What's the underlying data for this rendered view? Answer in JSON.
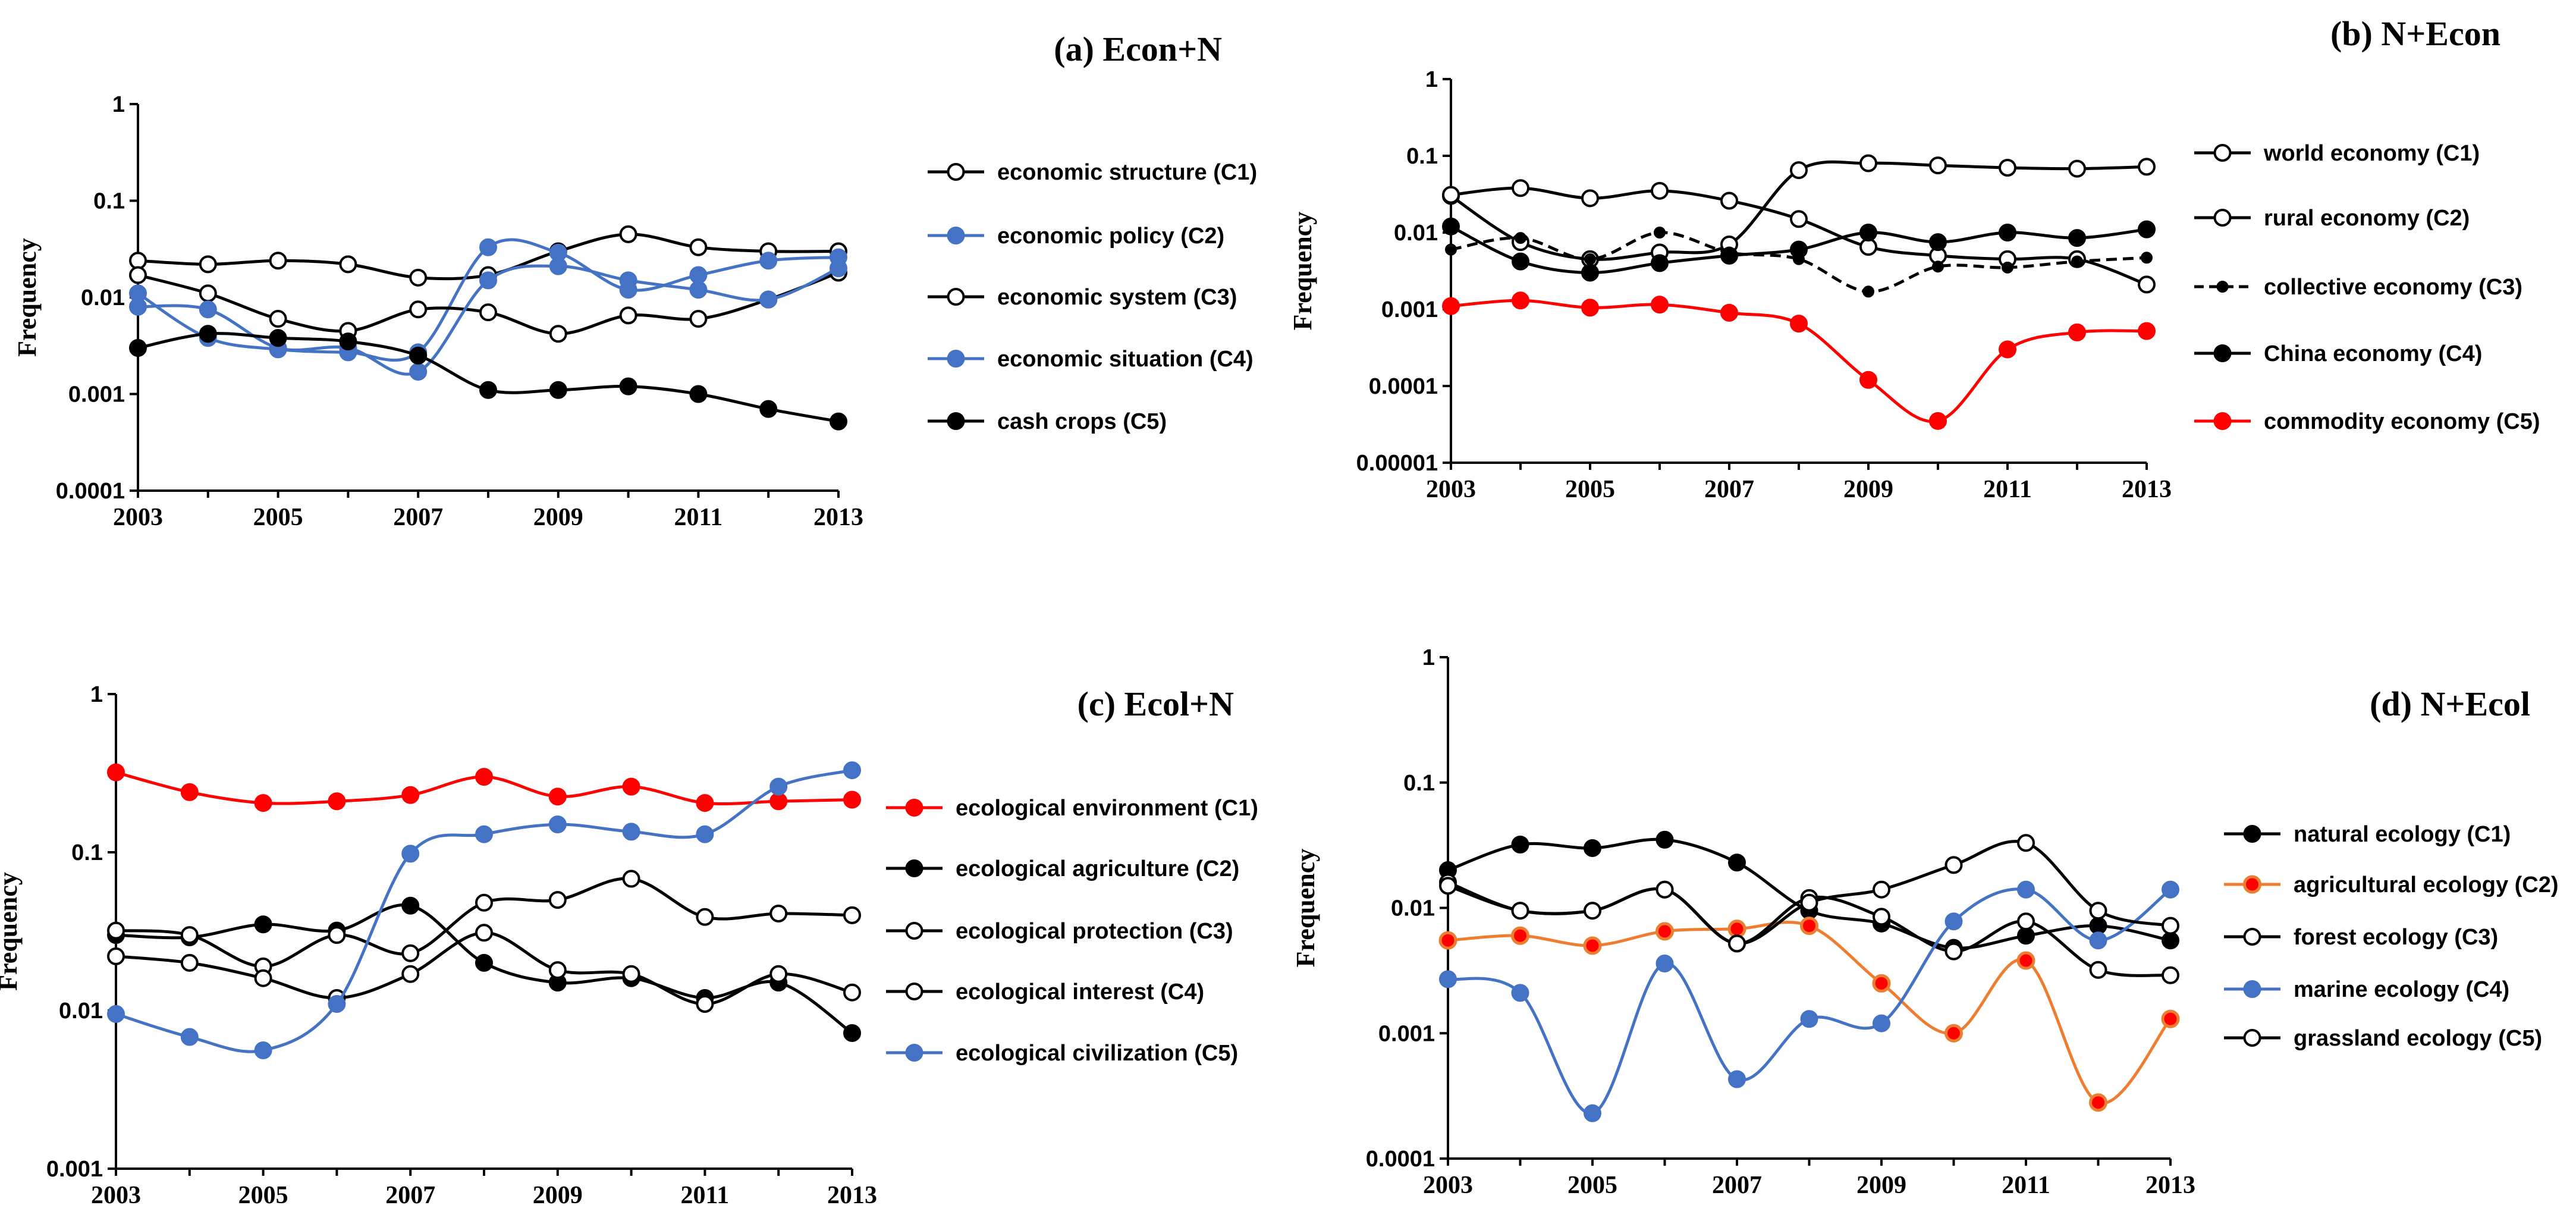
{
  "chart_data": [
    {
      "id": "a",
      "type": "line",
      "title": "(a) Econ+N",
      "xlabel": "",
      "ylabel": "Frequency",
      "yscale": "log",
      "ylim": [
        0.0001,
        1
      ],
      "yticks": [
        "1",
        "0.1",
        "0.01",
        "0.001",
        "0.0001"
      ],
      "xlim": [
        2003,
        2013
      ],
      "xticks": [
        "2003",
        "2005",
        "2007",
        "2009",
        "2011",
        "2013"
      ],
      "x": [
        2003,
        2004,
        2005,
        2006,
        2007,
        2008,
        2009,
        2010,
        2011,
        2012,
        2013
      ],
      "legend_position": "right",
      "series": [
        {
          "name": "economic structure (C1)",
          "color": "#000000",
          "marker": "open",
          "dashed": false,
          "values": [
            0.024,
            0.022,
            0.024,
            0.022,
            0.016,
            0.017,
            0.03,
            0.045,
            0.033,
            0.03,
            0.03
          ]
        },
        {
          "name": "economic policy (C2)",
          "color": "#4472C4",
          "marker": "filled",
          "dashed": false,
          "values": [
            0.011,
            0.0038,
            0.0029,
            0.0027,
            0.0027,
            0.033,
            0.029,
            0.012,
            0.017,
            0.024,
            0.026
          ]
        },
        {
          "name": "economic system (C3)",
          "color": "#000000",
          "marker": "open",
          "dashed": false,
          "values": [
            0.017,
            0.011,
            0.006,
            0.0045,
            0.0075,
            0.007,
            0.0042,
            0.0065,
            0.006,
            0.0095,
            0.018
          ]
        },
        {
          "name": "economic situation (C4)",
          "color": "#4472C4",
          "marker": "filled",
          "dashed": false,
          "values": [
            0.008,
            0.0075,
            0.003,
            0.003,
            0.0017,
            0.015,
            0.021,
            0.015,
            0.012,
            0.0095,
            0.02
          ]
        },
        {
          "name": "cash crops (C5)",
          "color": "#000000",
          "marker": "filled",
          "dashed": false,
          "values": [
            0.003,
            0.0042,
            0.0038,
            0.0035,
            0.0025,
            0.0011,
            0.0011,
            0.0012,
            0.001,
            0.0007,
            0.00052
          ]
        }
      ]
    },
    {
      "id": "b",
      "type": "line",
      "title": "(b) N+Econ",
      "xlabel": "",
      "ylabel": "Frequency",
      "yscale": "log",
      "ylim": [
        1e-05,
        1
      ],
      "yticks": [
        "1",
        "0.1",
        "0.01",
        "0.001",
        "0.0001",
        "0.00001"
      ],
      "xlim": [
        2003,
        2013
      ],
      "xticks": [
        "2003",
        "2005",
        "2007",
        "2009",
        "2011",
        "2013"
      ],
      "x": [
        2003,
        2004,
        2005,
        2006,
        2007,
        2008,
        2009,
        2010,
        2011,
        2012,
        2013
      ],
      "legend_position": "right",
      "series": [
        {
          "name": "world economy (C1)",
          "color": "#000000",
          "marker": "open",
          "dashed": false,
          "values": [
            0.03,
            0.0075,
            0.0045,
            0.0055,
            0.007,
            0.065,
            0.08,
            0.075,
            0.07,
            0.068,
            0.072
          ]
        },
        {
          "name": "rural economy (C2)",
          "color": "#000000",
          "marker": "open",
          "dashed": false,
          "values": [
            0.031,
            0.038,
            0.028,
            0.035,
            0.026,
            0.015,
            0.0065,
            0.005,
            0.0045,
            0.0045,
            0.0021
          ]
        },
        {
          "name": "collective economy (C3)",
          "color": "#000000",
          "marker": "small",
          "dashed": true,
          "values": [
            0.006,
            0.0085,
            0.0045,
            0.01,
            0.0055,
            0.0045,
            0.0017,
            0.0036,
            0.0035,
            0.0042,
            0.0047
          ]
        },
        {
          "name": "China economy (C4)",
          "color": "#000000",
          "marker": "filled",
          "dashed": false,
          "values": [
            0.012,
            0.0042,
            0.003,
            0.004,
            0.005,
            0.006,
            0.01,
            0.0075,
            0.01,
            0.0085,
            0.011
          ]
        },
        {
          "name": "commodity economy (C5)",
          "color": "#FF0000",
          "marker": "filled",
          "dashed": false,
          "values": [
            0.0011,
            0.0013,
            0.00105,
            0.00115,
            0.0009,
            0.00065,
            0.00012,
            3.5e-05,
            0.0003,
            0.0005,
            0.00052
          ]
        }
      ]
    },
    {
      "id": "c",
      "type": "line",
      "title": "(c) Ecol+N",
      "xlabel": "",
      "ylabel": "Frequency",
      "yscale": "log",
      "ylim": [
        0.001,
        1
      ],
      "yticks": [
        "1",
        "0.1",
        "0.01",
        "0.001"
      ],
      "xlim": [
        2003,
        2013
      ],
      "xticks": [
        "2003",
        "2005",
        "2007",
        "2009",
        "2011",
        "2013"
      ],
      "x": [
        2003,
        2004,
        2005,
        2006,
        2007,
        2008,
        2009,
        2010,
        2011,
        2012,
        2013
      ],
      "legend_position": "right",
      "series": [
        {
          "name": "ecological environment (C1)",
          "color": "#FF0000",
          "marker": "filled",
          "dashed": false,
          "values": [
            0.32,
            0.24,
            0.205,
            0.21,
            0.23,
            0.3,
            0.225,
            0.26,
            0.205,
            0.21,
            0.215
          ]
        },
        {
          "name": "ecological agriculture (C2)",
          "color": "#000000",
          "marker": "filled",
          "dashed": false,
          "values": [
            0.03,
            0.029,
            0.035,
            0.032,
            0.046,
            0.02,
            0.015,
            0.016,
            0.012,
            0.015,
            0.0072
          ]
        },
        {
          "name": "ecological protection (C3)",
          "color": "#000000",
          "marker": "open",
          "dashed": false,
          "values": [
            0.032,
            0.03,
            0.019,
            0.03,
            0.023,
            0.048,
            0.05,
            0.068,
            0.039,
            0.041,
            0.04
          ]
        },
        {
          "name": "ecological interest (C4)",
          "color": "#000000",
          "marker": "open",
          "dashed": false,
          "values": [
            0.022,
            0.02,
            0.016,
            0.012,
            0.017,
            0.031,
            0.018,
            0.017,
            0.011,
            0.017,
            0.013
          ]
        },
        {
          "name": "ecological civilization (C5)",
          "color": "#4472C4",
          "marker": "filled",
          "dashed": false,
          "values": [
            0.0095,
            0.0068,
            0.0056,
            0.011,
            0.098,
            0.13,
            0.15,
            0.135,
            0.13,
            0.26,
            0.33
          ]
        }
      ]
    },
    {
      "id": "d",
      "type": "line",
      "title": "(d) N+Ecol",
      "xlabel": "",
      "ylabel": "Frequency",
      "yscale": "log",
      "ylim": [
        0.0001,
        1
      ],
      "yticks": [
        "1",
        "0.1",
        "0.01",
        "0.001",
        "0.0001"
      ],
      "xlim": [
        2003,
        2013
      ],
      "xticks": [
        "2003",
        "2005",
        "2007",
        "2009",
        "2011",
        "2013"
      ],
      "x": [
        2003,
        2004,
        2005,
        2006,
        2007,
        2008,
        2009,
        2010,
        2011,
        2012,
        2013
      ],
      "legend_position": "right",
      "series": [
        {
          "name": "natural ecology (C1)",
          "color": "#000000",
          "marker": "filled",
          "dashed": false,
          "values": [
            0.02,
            0.032,
            0.03,
            0.035,
            0.023,
            0.0095,
            0.0075,
            0.0048,
            0.006,
            0.0072,
            0.0055
          ]
        },
        {
          "name": "agricultural ecology (C2)",
          "color": "#ED7D31",
          "marker": "orange",
          "dashed": false,
          "values": [
            0.0055,
            0.006,
            0.005,
            0.0065,
            0.0068,
            0.0072,
            0.0025,
            0.001,
            0.0038,
            0.00028,
            0.0013
          ]
        },
        {
          "name": "forest ecology (C3)",
          "color": "#000000",
          "marker": "open",
          "dashed": false,
          "values": [
            0.016,
            0.0095,
            0.0095,
            0.014,
            0.0052,
            0.012,
            0.0085,
            0.0045,
            0.0078,
            0.0032,
            0.0029
          ]
        },
        {
          "name": "marine ecology (C4)",
          "color": "#4472C4",
          "marker": "filled",
          "dashed": false,
          "values": [
            0.0027,
            0.0021,
            0.00023,
            0.0036,
            0.00043,
            0.0013,
            0.0012,
            0.0078,
            0.014,
            0.0055,
            0.014
          ]
        },
        {
          "name": "grassland ecology (C5)",
          "color": "#000000",
          "marker": "open",
          "dashed": false,
          "values": [
            0.015,
            0.0095,
            0.0095,
            0.014,
            0.0052,
            0.011,
            0.014,
            0.022,
            0.033,
            0.0095,
            0.0072
          ]
        }
      ]
    }
  ]
}
